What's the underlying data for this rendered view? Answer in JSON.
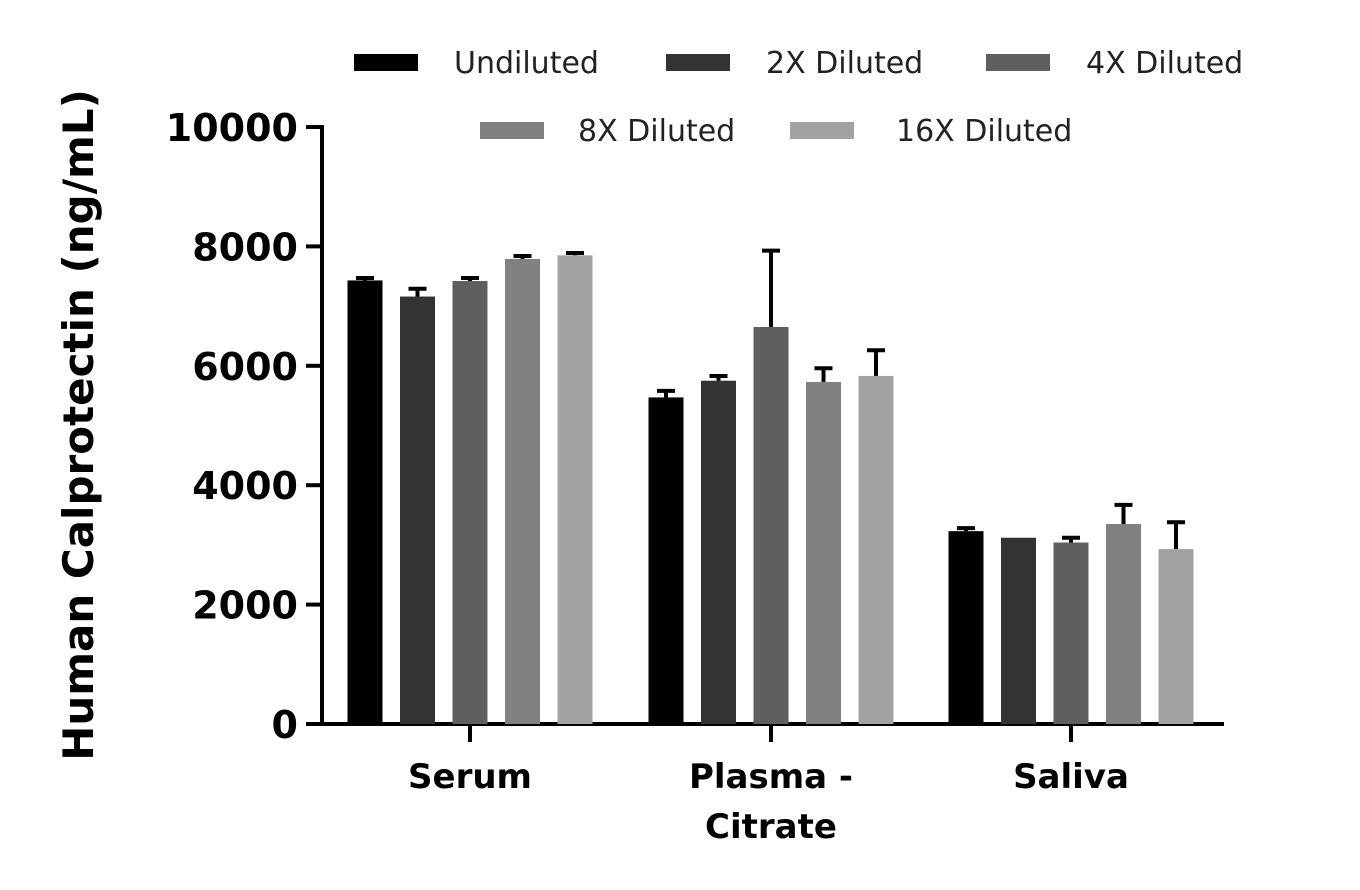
{
  "chart_data": {
    "type": "bar",
    "title": "",
    "xlabel": "",
    "ylabel": "Human Calprotectin (ng/mL)",
    "ylim": [
      0,
      10000
    ],
    "yticks": [
      0,
      2000,
      4000,
      6000,
      8000,
      10000
    ],
    "grid": false,
    "legend_position": "top",
    "categories": [
      [
        "Serum"
      ],
      [
        "Plasma -",
        "Citrate"
      ],
      [
        "Saliva"
      ]
    ],
    "series": [
      {
        "name": "Undiluted",
        "color": "#000000",
        "values": [
          7430,
          5470,
          3230
        ],
        "errors": [
          40,
          110,
          50
        ]
      },
      {
        "name": "2X Diluted",
        "color": "#333333",
        "values": [
          7160,
          5750,
          3120
        ],
        "errors": [
          130,
          80,
          0
        ]
      },
      {
        "name": "4X Diluted",
        "color": "#5f5f5f",
        "values": [
          7420,
          6650,
          3040
        ],
        "errors": [
          50,
          1280,
          80
        ]
      },
      {
        "name": "8X Diluted",
        "color": "#818181",
        "values": [
          7790,
          5730,
          3350
        ],
        "errors": [
          50,
          230,
          320
        ]
      },
      {
        "name": "16X Diluted",
        "color": "#a2a2a5",
        "values": [
          7850,
          5830,
          2930
        ],
        "errors": [
          40,
          430,
          450
        ]
      }
    ]
  }
}
